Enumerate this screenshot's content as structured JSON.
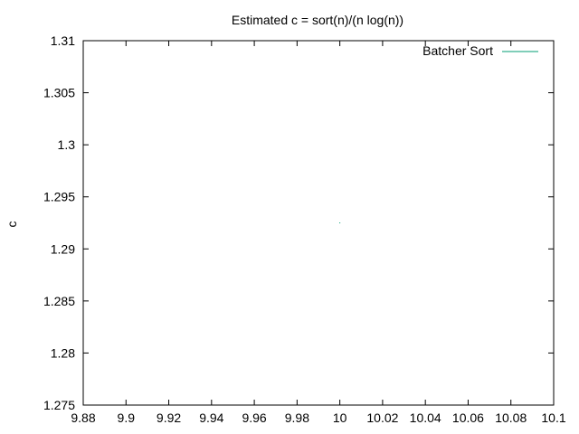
{
  "chart_data": {
    "type": "line",
    "title": "Estimated c = sort(n)/(n log(n))",
    "xlabel": "",
    "ylabel": "c",
    "xlim": [
      9.88,
      10.1
    ],
    "ylim": [
      1.275,
      1.31
    ],
    "x_ticks": [
      "9.88",
      "9.9",
      "9.92",
      "9.94",
      "9.96",
      "9.98",
      "10",
      "10.02",
      "10.04",
      "10.06",
      "10.08",
      "10.1"
    ],
    "y_ticks": [
      "1.275",
      "1.28",
      "1.285",
      "1.29",
      "1.295",
      "1.3",
      "1.305",
      "1.31"
    ],
    "grid": false,
    "legend_position": "top-right",
    "series": [
      {
        "name": "Batcher Sort",
        "color": "#009e73",
        "points": [
          {
            "x": 10,
            "y": 1.2925
          }
        ]
      }
    ]
  }
}
